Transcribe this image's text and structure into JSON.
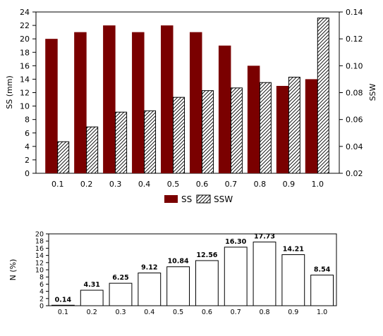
{
  "colors": {
    "ss": "#7a0000",
    "ssw_hatch": "#000000",
    "bar2": "#ffffff"
  },
  "chart_data": [
    {
      "type": "bar",
      "categories": [
        "0.1",
        "0.2",
        "0.3",
        "0.4",
        "0.5",
        "0.6",
        "0.7",
        "0.8",
        "0.9",
        "1.0"
      ],
      "series": [
        {
          "name": "SS",
          "axis": "left",
          "values": [
            20,
            21,
            22,
            21,
            22,
            21,
            19,
            16,
            13,
            14
          ]
        },
        {
          "name": "SSW",
          "axis": "right",
          "values": [
            0.0435,
            0.0545,
            0.0655,
            0.0665,
            0.0765,
            0.0815,
            0.0835,
            0.0875,
            0.0915,
            0.1355
          ]
        }
      ],
      "ylabel": "SS (mm)",
      "ylabel_right": "SSW",
      "ylim": [
        0,
        24
      ],
      "ylim_right": [
        0.02,
        0.14
      ],
      "yticks": [
        "0",
        "2",
        "4",
        "6",
        "8",
        "10",
        "12",
        "14",
        "16",
        "18",
        "20",
        "22",
        "24"
      ],
      "yticks_right": [
        "0.02",
        "0.04",
        "0.06",
        "0.08",
        "0.10",
        "0.12",
        "0.14"
      ],
      "legend": [
        "SS",
        "SSW"
      ],
      "legend_position": "bottom"
    },
    {
      "type": "bar",
      "categories": [
        "0.1",
        "0.2",
        "0.3",
        "0.4",
        "0.5",
        "0.6",
        "0.7",
        "0.8",
        "0.9",
        "1.0"
      ],
      "values": [
        0.14,
        4.31,
        6.25,
        9.12,
        10.84,
        12.56,
        16.3,
        17.73,
        14.21,
        8.54
      ],
      "value_labels": [
        "0.14",
        "4.31",
        "6.25",
        "9.12",
        "10.84",
        "12.56",
        "16.30",
        "17.73",
        "14.21",
        "8.54"
      ],
      "ylabel": "N (%)",
      "ylim": [
        0,
        20
      ],
      "yticks": [
        "0",
        "2",
        "4",
        "6",
        "8",
        "10",
        "12",
        "14",
        "16",
        "18",
        "20"
      ]
    }
  ]
}
